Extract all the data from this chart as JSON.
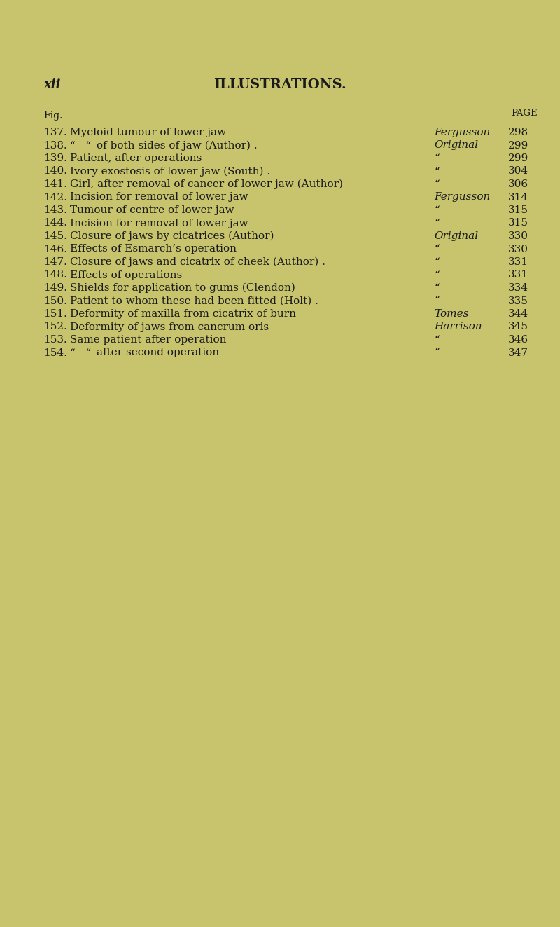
{
  "background_color": "#c8c46e",
  "page_bg": "#c8c87a",
  "header_left": "xii",
  "header_center": "ILLUSTRATIONS.",
  "col_fig_label": "Fig.",
  "col_page_label": "PAGE",
  "entries": [
    {
      "num": "137.",
      "desc": "Myeloid tumour of lower jaw",
      "dots": true,
      "source": "Fergusson",
      "source_italic": true,
      "page": "298"
    },
    {
      "num": "138.",
      "desc": "of both sides of jaw (Author) .",
      "prefix": "“   “",
      "source": "Original",
      "source_italic": true,
      "page": "299"
    },
    {
      "num": "139.",
      "desc": "Patient, after operations",
      "dots": true,
      "source": "“",
      "source_italic": false,
      "page": "299"
    },
    {
      "num": "140.",
      "desc": "Ivory exostosis of lower jaw (South) .",
      "dots": true,
      "source": "“",
      "source_italic": false,
      "page": "304"
    },
    {
      "num": "141.",
      "desc": "Girl, after removal of cancer of lower jaw (Author)",
      "source": "“",
      "source_italic": false,
      "page": "306"
    },
    {
      "num": "142.",
      "desc": "Incision for removal of lower jaw",
      "dots": true,
      "source": "Fergusson",
      "source_italic": true,
      "page": "314"
    },
    {
      "num": "143.",
      "desc": "Tumour of centre of lower jaw",
      "dots": true,
      "source": "“",
      "source_italic": false,
      "page": "315"
    },
    {
      "num": "144.",
      "desc": "Incision for removal of lower jaw",
      "dots": true,
      "source": "“",
      "source_italic": false,
      "page": "315"
    },
    {
      "num": "145.",
      "desc": "Closure of jaws by cicatrices (Author)",
      "dots": true,
      "source": "Original",
      "source_italic": true,
      "page": "330"
    },
    {
      "num": "146.",
      "desc": "Effects of Esmarch’s operation",
      "dots": true,
      "source": "“",
      "source_italic": false,
      "page": "330"
    },
    {
      "num": "147.",
      "desc": "Closure of jaws and cicatrix of cheek (Author) .",
      "source": "“",
      "source_italic": false,
      "page": "331"
    },
    {
      "num": "148.",
      "desc": "Effects of operations",
      "dots": true,
      "source": "“",
      "source_italic": false,
      "page": "331"
    },
    {
      "num": "149.",
      "desc": "Shields for application to gums (Clendon)",
      "dots": true,
      "source": "“",
      "source_italic": false,
      "page": "334"
    },
    {
      "num": "150.",
      "desc": "Patient to whom these had been fitted (Holt) .",
      "source": "“",
      "source_italic": false,
      "page": "335"
    },
    {
      "num": "151.",
      "desc": "Deformity of maxilla from cicatrix of burn",
      "dots": true,
      "source": "Tomes",
      "source_italic": true,
      "page": "344"
    },
    {
      "num": "152.",
      "desc": "Deformity of jaws from cancrum oris",
      "dots": true,
      "source": "Harrison",
      "source_italic": true,
      "page": "345"
    },
    {
      "num": "153.",
      "desc": "Same patient after operation",
      "dots": true,
      "source": "“",
      "source_italic": false,
      "page": "346"
    },
    {
      "num": "154.",
      "desc": "after second operation",
      "prefix": "“   “",
      "dots": true,
      "source": "“",
      "source_italic": false,
      "page": "347"
    }
  ],
  "text_color": "#1a1a1a",
  "header_fontsize": 13,
  "body_fontsize": 11,
  "label_fontsize": 10
}
